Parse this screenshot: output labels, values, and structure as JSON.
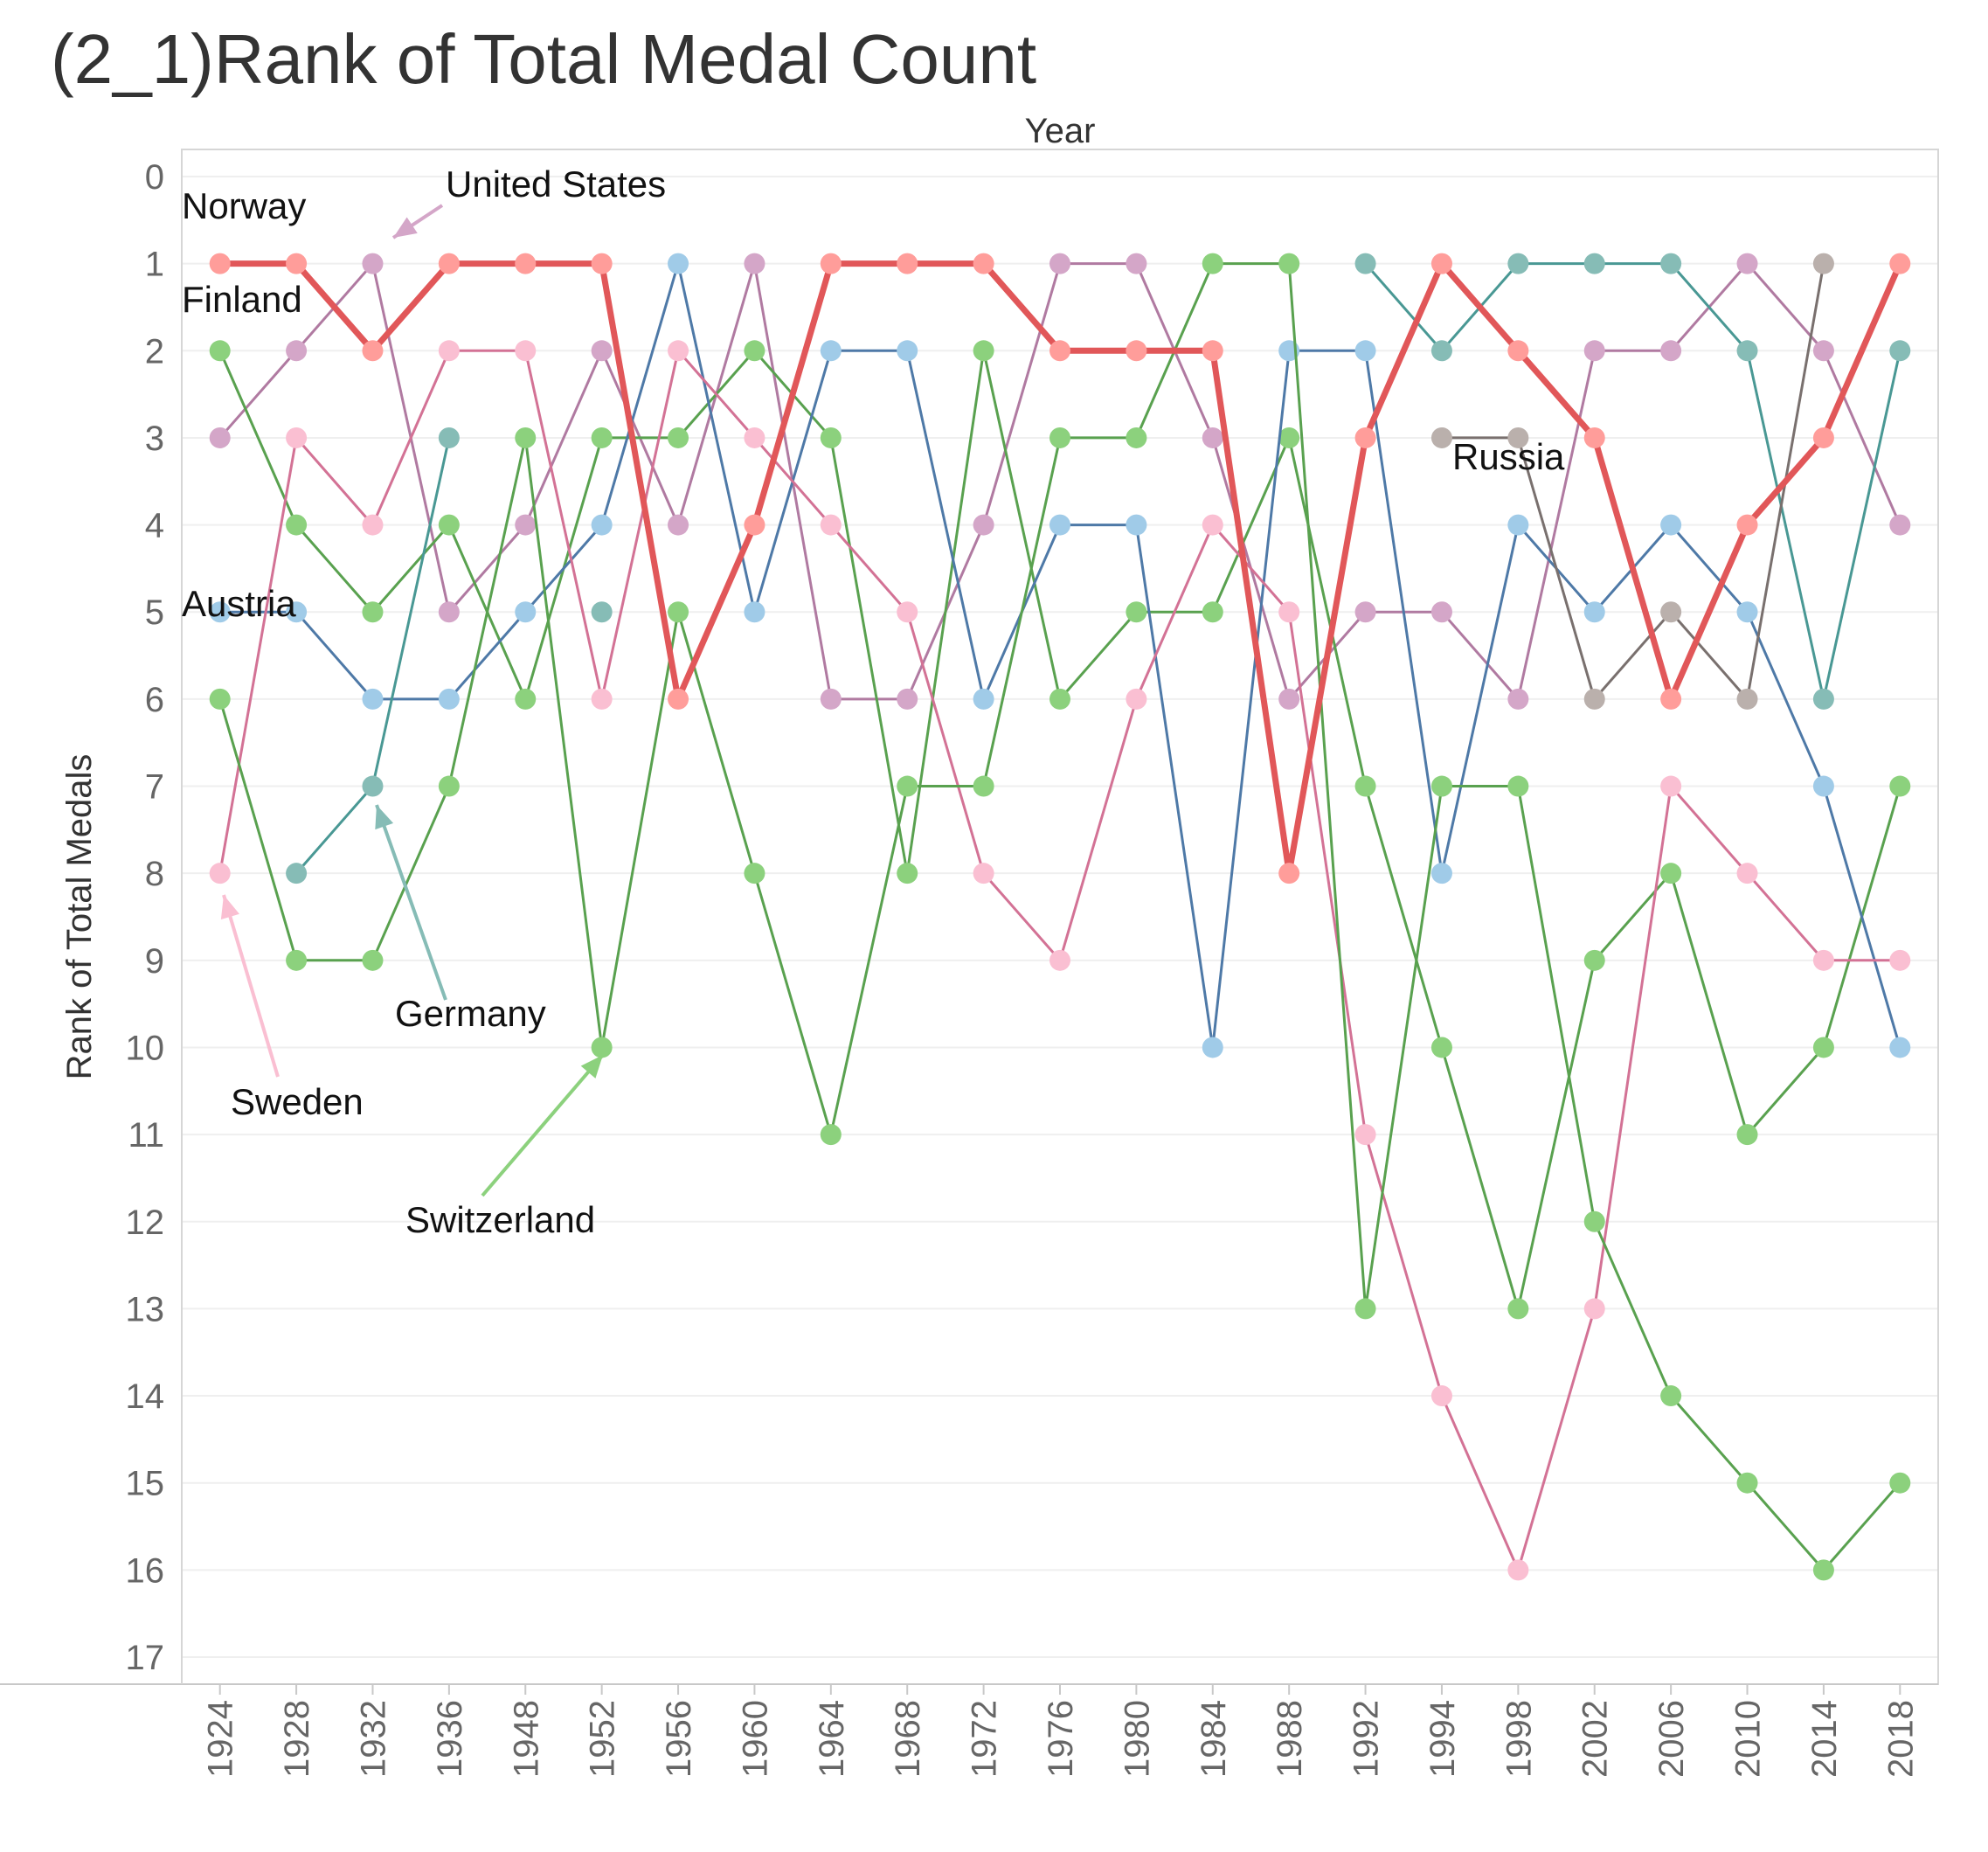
{
  "chart_data": {
    "type": "line",
    "title": "(2_1)Rank of Total Medal Count",
    "xlabel": "Year",
    "ylabel": "Rank of Total Medals",
    "categories": [
      "1924",
      "1928",
      "1932",
      "1936",
      "1948",
      "1952",
      "1956",
      "1960",
      "1964",
      "1968",
      "1972",
      "1976",
      "1980",
      "1984",
      "1988",
      "1992",
      "1994",
      "1998",
      "2002",
      "2006",
      "2010",
      "2014",
      "2018"
    ],
    "yticks": [
      0,
      1,
      2,
      3,
      4,
      5,
      6,
      7,
      8,
      9,
      10,
      11,
      12,
      13,
      14,
      15,
      16,
      17
    ],
    "ylim": [
      0,
      17
    ],
    "y_reversed": true,
    "grid": true,
    "series": [
      {
        "name": "Norway",
        "color": "#e15759",
        "point_color": "#ff9d9a",
        "emphasis": true,
        "values": [
          1,
          1,
          2,
          1,
          1,
          1,
          6,
          4,
          1,
          1,
          1,
          2,
          2,
          2,
          8,
          3,
          1,
          2,
          3,
          6,
          4,
          3,
          1
        ]
      },
      {
        "name": "United States",
        "color": "#b07aa1",
        "point_color": "#d4a6c8",
        "values": [
          3,
          2,
          1,
          5,
          4,
          2,
          4,
          1,
          6,
          6,
          4,
          1,
          1,
          3,
          6,
          5,
          5,
          6,
          2,
          2,
          1,
          2,
          4
        ]
      },
      {
        "name": "Finland",
        "color": "#59a14f",
        "point_color": "#8cd17d",
        "values": [
          2,
          4,
          5,
          4,
          6,
          3,
          3,
          2,
          3,
          8,
          2,
          6,
          5,
          5,
          3,
          7,
          10,
          13,
          9,
          8,
          11,
          10,
          7
        ]
      },
      {
        "name": "Austria",
        "color": "#4e79a7",
        "point_color": "#a0cbe8",
        "values": [
          5,
          5,
          6,
          6,
          5,
          4,
          1,
          5,
          2,
          2,
          6,
          4,
          4,
          10,
          2,
          2,
          8,
          4,
          5,
          4,
          5,
          7,
          10
        ]
      },
      {
        "name": "Sweden",
        "color": "#d37295",
        "point_color": "#fabfd2",
        "values": [
          8,
          3,
          4,
          2,
          2,
          6,
          2,
          3,
          4,
          5,
          8,
          9,
          6,
          4,
          5,
          11,
          14,
          16,
          13,
          7,
          8,
          9,
          9
        ]
      },
      {
        "name": "Switzerland",
        "color": "#59a14f",
        "point_color": "#8cd17d",
        "values": [
          6,
          9,
          9,
          7,
          3,
          10,
          5,
          8,
          11,
          7,
          7,
          3,
          3,
          1,
          1,
          13,
          7,
          7,
          12,
          14,
          15,
          16,
          15
        ]
      },
      {
        "name": "Germany",
        "color": "#499894",
        "point_color": "#86bcb6",
        "values": [
          null,
          8,
          7,
          3,
          null,
          5,
          null,
          null,
          null,
          null,
          null,
          null,
          null,
          null,
          null,
          1,
          2,
          1,
          1,
          1,
          2,
          6,
          2
        ]
      },
      {
        "name": "Russia",
        "color": "#79706e",
        "point_color": "#bab0ac",
        "values": [
          null,
          null,
          null,
          null,
          null,
          null,
          null,
          null,
          null,
          null,
          null,
          null,
          null,
          null,
          null,
          null,
          3,
          3,
          6,
          5,
          6,
          1,
          null
        ]
      }
    ],
    "annotations": [
      {
        "text": "Norway",
        "series": "Norway"
      },
      {
        "text": "United States",
        "series": "United States"
      },
      {
        "text": "Finland",
        "series": "Finland"
      },
      {
        "text": "Austria",
        "series": "Austria"
      },
      {
        "text": "Russia",
        "series": "Russia"
      },
      {
        "text": "Germany",
        "series": "Germany"
      },
      {
        "text": "Sweden",
        "series": "Sweden"
      },
      {
        "text": "Switzerland",
        "series": "Switzerland"
      }
    ]
  }
}
